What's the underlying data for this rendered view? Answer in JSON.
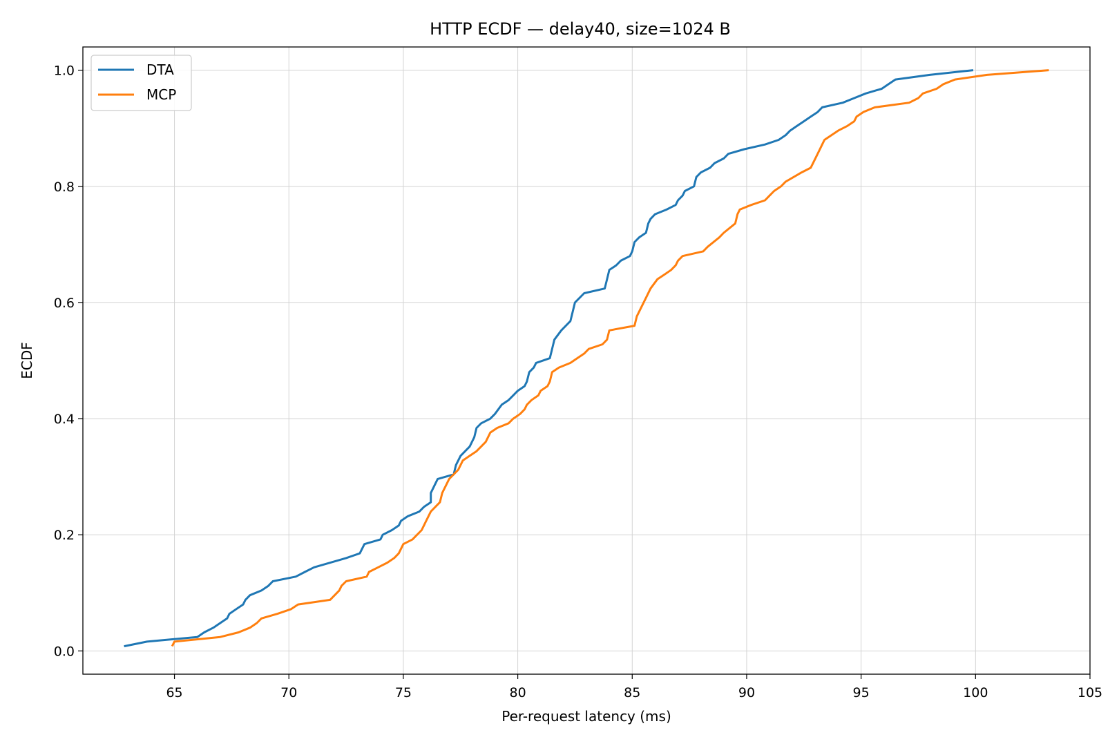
{
  "chart_data": {
    "type": "line",
    "title": "HTTP ECDF — delay40, size=1024 B",
    "xlabel": "Per-request latency (ms)",
    "ylabel": "ECDF",
    "xlim": [
      61,
      105
    ],
    "ylim": [
      -0.04,
      1.04
    ],
    "xticks": [
      65,
      70,
      75,
      80,
      85,
      90,
      95,
      100,
      105
    ],
    "xtick_labels": [
      "65",
      "70",
      "75",
      "80",
      "85",
      "90",
      "95",
      "100",
      "105"
    ],
    "yticks": [
      0.0,
      0.2,
      0.4,
      0.6,
      0.8,
      1.0
    ],
    "ytick_labels": [
      "0.0",
      "0.2",
      "0.4",
      "0.6",
      "0.8",
      "1.0"
    ],
    "grid": true,
    "legend_position": "top-left",
    "series": [
      {
        "name": "DTA",
        "color": "#1f77b4",
        "points": [
          [
            62.8,
            0.008
          ],
          [
            63.8,
            0.016
          ],
          [
            66.0,
            0.024
          ],
          [
            66.3,
            0.032
          ],
          [
            66.7,
            0.04
          ],
          [
            67.0,
            0.048
          ],
          [
            67.3,
            0.056
          ],
          [
            67.4,
            0.064
          ],
          [
            67.7,
            0.072
          ],
          [
            68.0,
            0.08
          ],
          [
            68.1,
            0.088
          ],
          [
            68.3,
            0.096
          ],
          [
            68.8,
            0.104
          ],
          [
            69.1,
            0.112
          ],
          [
            69.3,
            0.12
          ],
          [
            70.3,
            0.128
          ],
          [
            70.7,
            0.136
          ],
          [
            71.1,
            0.144
          ],
          [
            72.5,
            0.16
          ],
          [
            73.1,
            0.168
          ],
          [
            73.3,
            0.184
          ],
          [
            74.0,
            0.192
          ],
          [
            74.1,
            0.2
          ],
          [
            74.5,
            0.208
          ],
          [
            74.8,
            0.216
          ],
          [
            74.9,
            0.224
          ],
          [
            75.2,
            0.232
          ],
          [
            75.7,
            0.24
          ],
          [
            75.9,
            0.248
          ],
          [
            76.2,
            0.256
          ],
          [
            76.2,
            0.272
          ],
          [
            76.4,
            0.288
          ],
          [
            76.5,
            0.296
          ],
          [
            77.2,
            0.304
          ],
          [
            77.3,
            0.32
          ],
          [
            77.5,
            0.336
          ],
          [
            77.9,
            0.352
          ],
          [
            78.1,
            0.368
          ],
          [
            78.2,
            0.384
          ],
          [
            78.4,
            0.392
          ],
          [
            78.8,
            0.4
          ],
          [
            79.0,
            0.408
          ],
          [
            79.3,
            0.424
          ],
          [
            79.6,
            0.432
          ],
          [
            79.8,
            0.44
          ],
          [
            80.0,
            0.448
          ],
          [
            80.3,
            0.456
          ],
          [
            80.4,
            0.464
          ],
          [
            80.5,
            0.48
          ],
          [
            80.7,
            0.488
          ],
          [
            80.8,
            0.496
          ],
          [
            81.4,
            0.504
          ],
          [
            81.5,
            0.52
          ],
          [
            81.6,
            0.536
          ],
          [
            81.9,
            0.552
          ],
          [
            82.1,
            0.56
          ],
          [
            82.3,
            0.568
          ],
          [
            82.4,
            0.584
          ],
          [
            82.5,
            0.6
          ],
          [
            82.7,
            0.608
          ],
          [
            82.9,
            0.616
          ],
          [
            83.8,
            0.624
          ],
          [
            83.9,
            0.64
          ],
          [
            84.0,
            0.656
          ],
          [
            84.3,
            0.664
          ],
          [
            84.5,
            0.672
          ],
          [
            84.9,
            0.68
          ],
          [
            85.0,
            0.688
          ],
          [
            85.1,
            0.704
          ],
          [
            85.3,
            0.712
          ],
          [
            85.6,
            0.72
          ],
          [
            85.7,
            0.736
          ],
          [
            85.8,
            0.744
          ],
          [
            86.0,
            0.752
          ],
          [
            86.5,
            0.76
          ],
          [
            86.9,
            0.768
          ],
          [
            87.0,
            0.776
          ],
          [
            87.2,
            0.784
          ],
          [
            87.3,
            0.792
          ],
          [
            87.7,
            0.8
          ],
          [
            87.8,
            0.816
          ],
          [
            88.0,
            0.824
          ],
          [
            88.4,
            0.832
          ],
          [
            88.6,
            0.84
          ],
          [
            89.0,
            0.848
          ],
          [
            89.2,
            0.856
          ],
          [
            89.9,
            0.864
          ],
          [
            90.8,
            0.872
          ],
          [
            91.4,
            0.88
          ],
          [
            91.7,
            0.888
          ],
          [
            91.9,
            0.896
          ],
          [
            92.2,
            0.904
          ],
          [
            92.5,
            0.912
          ],
          [
            92.8,
            0.92
          ],
          [
            93.1,
            0.928
          ],
          [
            93.3,
            0.936
          ],
          [
            94.2,
            0.944
          ],
          [
            94.7,
            0.952
          ],
          [
            95.2,
            0.96
          ],
          [
            95.9,
            0.968
          ],
          [
            96.2,
            0.976
          ],
          [
            96.5,
            0.984
          ],
          [
            98.0,
            0.992
          ],
          [
            99.9,
            1.0
          ]
        ]
      },
      {
        "name": "MCP",
        "color": "#ff7f0e",
        "points": [
          [
            64.9,
            0.008
          ],
          [
            65.0,
            0.016
          ],
          [
            67.0,
            0.024
          ],
          [
            67.8,
            0.032
          ],
          [
            68.3,
            0.04
          ],
          [
            68.6,
            0.048
          ],
          [
            68.8,
            0.056
          ],
          [
            69.5,
            0.064
          ],
          [
            70.1,
            0.072
          ],
          [
            70.4,
            0.08
          ],
          [
            71.8,
            0.088
          ],
          [
            72.0,
            0.096
          ],
          [
            72.2,
            0.104
          ],
          [
            72.3,
            0.112
          ],
          [
            72.5,
            0.12
          ],
          [
            73.4,
            0.128
          ],
          [
            73.5,
            0.136
          ],
          [
            73.9,
            0.144
          ],
          [
            74.3,
            0.152
          ],
          [
            74.6,
            0.16
          ],
          [
            74.8,
            0.168
          ],
          [
            75.0,
            0.184
          ],
          [
            75.4,
            0.192
          ],
          [
            75.6,
            0.2
          ],
          [
            75.8,
            0.208
          ],
          [
            75.9,
            0.216
          ],
          [
            76.0,
            0.224
          ],
          [
            76.2,
            0.24
          ],
          [
            76.6,
            0.256
          ],
          [
            76.7,
            0.272
          ],
          [
            76.9,
            0.288
          ],
          [
            77.0,
            0.296
          ],
          [
            77.4,
            0.312
          ],
          [
            77.6,
            0.328
          ],
          [
            77.9,
            0.336
          ],
          [
            78.2,
            0.344
          ],
          [
            78.4,
            0.352
          ],
          [
            78.6,
            0.36
          ],
          [
            78.8,
            0.376
          ],
          [
            79.1,
            0.384
          ],
          [
            79.6,
            0.392
          ],
          [
            79.8,
            0.4
          ],
          [
            80.1,
            0.408
          ],
          [
            80.3,
            0.416
          ],
          [
            80.4,
            0.424
          ],
          [
            80.6,
            0.432
          ],
          [
            80.9,
            0.44
          ],
          [
            81.0,
            0.448
          ],
          [
            81.3,
            0.456
          ],
          [
            81.4,
            0.464
          ],
          [
            81.5,
            0.48
          ],
          [
            81.8,
            0.488
          ],
          [
            82.3,
            0.496
          ],
          [
            82.6,
            0.504
          ],
          [
            82.9,
            0.512
          ],
          [
            83.1,
            0.52
          ],
          [
            83.7,
            0.528
          ],
          [
            83.9,
            0.536
          ],
          [
            84.0,
            0.552
          ],
          [
            85.1,
            0.56
          ],
          [
            85.2,
            0.576
          ],
          [
            85.4,
            0.592
          ],
          [
            85.6,
            0.608
          ],
          [
            85.8,
            0.624
          ],
          [
            86.1,
            0.64
          ],
          [
            86.4,
            0.648
          ],
          [
            86.7,
            0.656
          ],
          [
            86.9,
            0.664
          ],
          [
            87.0,
            0.672
          ],
          [
            87.2,
            0.68
          ],
          [
            88.1,
            0.688
          ],
          [
            88.3,
            0.696
          ],
          [
            88.8,
            0.712
          ],
          [
            89.0,
            0.72
          ],
          [
            89.5,
            0.736
          ],
          [
            89.6,
            0.752
          ],
          [
            89.7,
            0.76
          ],
          [
            90.2,
            0.768
          ],
          [
            90.8,
            0.776
          ],
          [
            91.0,
            0.784
          ],
          [
            91.2,
            0.792
          ],
          [
            91.5,
            0.8
          ],
          [
            91.7,
            0.808
          ],
          [
            92.4,
            0.824
          ],
          [
            92.8,
            0.832
          ],
          [
            93.0,
            0.848
          ],
          [
            93.2,
            0.864
          ],
          [
            93.3,
            0.872
          ],
          [
            93.4,
            0.88
          ],
          [
            94.0,
            0.896
          ],
          [
            94.4,
            0.904
          ],
          [
            94.7,
            0.912
          ],
          [
            94.8,
            0.92
          ],
          [
            95.1,
            0.928
          ],
          [
            95.6,
            0.936
          ],
          [
            97.1,
            0.944
          ],
          [
            97.5,
            0.952
          ],
          [
            97.7,
            0.96
          ],
          [
            98.3,
            0.968
          ],
          [
            98.6,
            0.976
          ],
          [
            99.1,
            0.984
          ],
          [
            100.5,
            0.992
          ],
          [
            103.2,
            1.0
          ]
        ]
      }
    ]
  }
}
